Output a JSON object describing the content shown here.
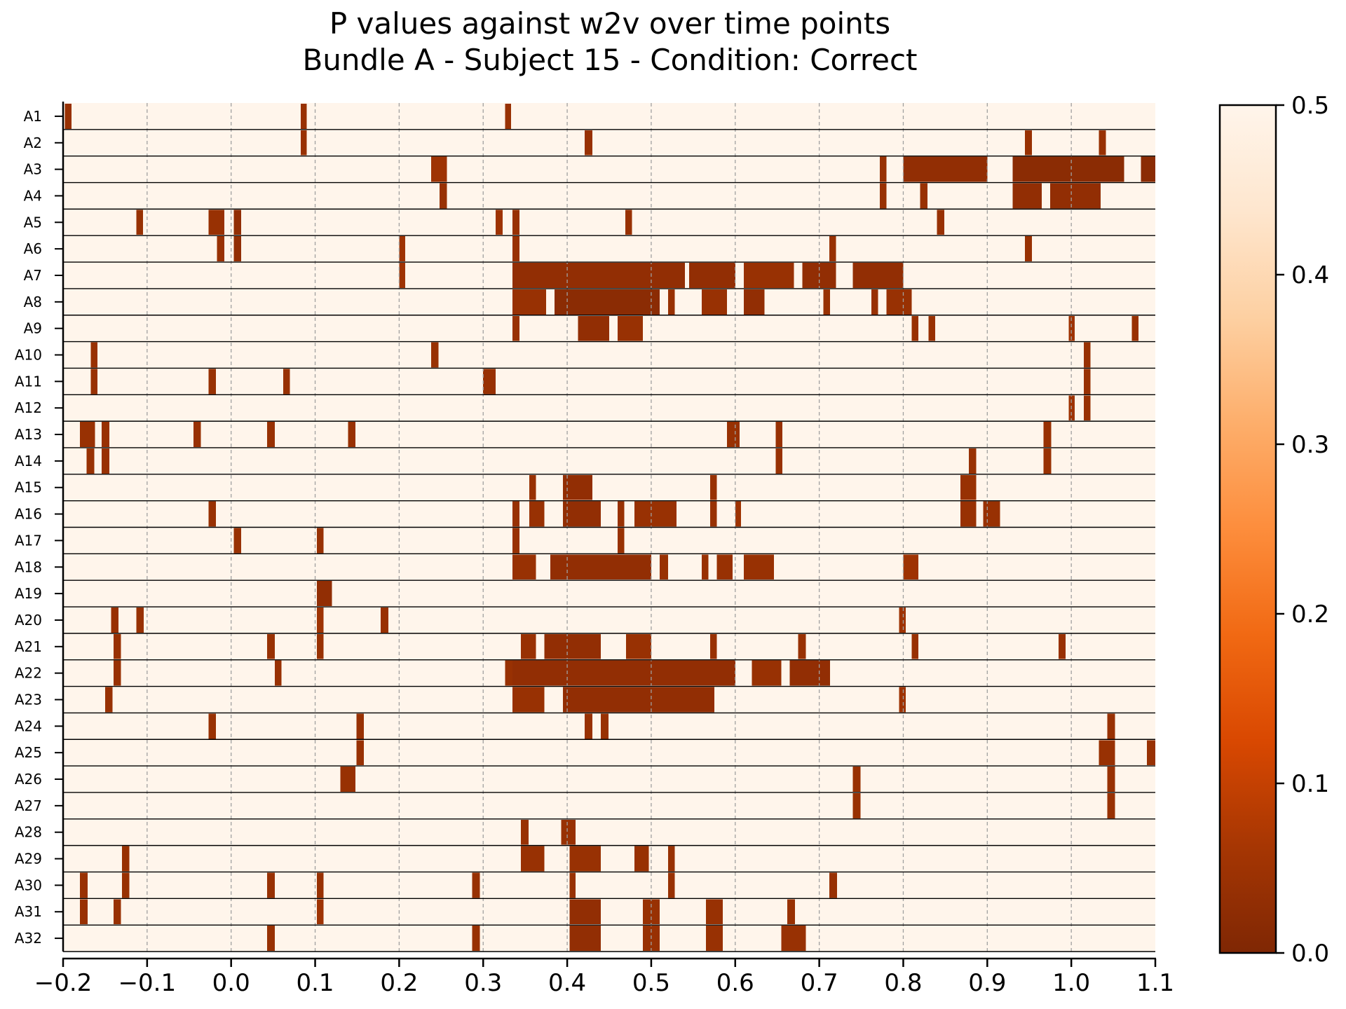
{
  "chart_data": {
    "type": "heatmap",
    "title_lines": [
      "P values against w2v over time points",
      "Bundle A - Subject 15 - Condition: Correct"
    ],
    "xlabel": "",
    "ylabel": "",
    "xlim": [
      -0.2,
      1.1
    ],
    "x_ticks": [
      "−0.2",
      "−0.1",
      "0.0",
      "0.1",
      "0.2",
      "0.3",
      "0.4",
      "0.5",
      "0.6",
      "0.7",
      "0.8",
      "0.9",
      "1.0",
      "1.1"
    ],
    "x_tick_values": [
      -0.2,
      -0.1,
      0.0,
      0.1,
      0.2,
      0.3,
      0.4,
      0.5,
      0.6,
      0.7,
      0.8,
      0.9,
      1.0,
      1.1
    ],
    "grid": "vertical dashed gridlines at x ticks",
    "colormap": "Oranges_r",
    "colorbar": {
      "range": [
        0.0,
        0.5
      ],
      "ticks": [
        "0.0",
        "0.1",
        "0.2",
        "0.3",
        "0.4",
        "0.5"
      ],
      "tick_values": [
        0.0,
        0.1,
        0.2,
        0.3,
        0.4,
        0.5
      ],
      "colors": [
        "#7f2704",
        "#a63603",
        "#d94801",
        "#f16913",
        "#fd8d3c",
        "#fdae6b",
        "#fdd0a2",
        "#fee6ce",
        "#fff5eb"
      ]
    },
    "background_value": 0.5,
    "rows": [
      {
        "label": "A1",
        "segments": [
          [
            -0.198,
            -0.19,
            0.04
          ],
          [
            0.083,
            0.09,
            0.04
          ],
          [
            0.326,
            0.333,
            0.04
          ]
        ]
      },
      {
        "label": "A2",
        "segments": [
          [
            0.083,
            0.09,
            0.04
          ],
          [
            0.421,
            0.43,
            0.04
          ],
          [
            0.945,
            0.953,
            0.04
          ],
          [
            1.033,
            1.041,
            0.04
          ]
        ]
      },
      {
        "label": "A3",
        "segments": [
          [
            0.238,
            0.257,
            0.05
          ],
          [
            0.772,
            0.78,
            0.04
          ],
          [
            0.8,
            0.9,
            0.03
          ],
          [
            0.93,
            1.063,
            0.02
          ],
          [
            1.083,
            1.1,
            0.02
          ]
        ]
      },
      {
        "label": "A4",
        "segments": [
          [
            0.248,
            0.257,
            0.04
          ],
          [
            0.772,
            0.78,
            0.04
          ],
          [
            0.82,
            0.829,
            0.04
          ],
          [
            0.93,
            0.965,
            0.03
          ],
          [
            0.975,
            1.035,
            0.03
          ]
        ]
      },
      {
        "label": "A5",
        "segments": [
          [
            -0.113,
            -0.105,
            0.04
          ],
          [
            -0.027,
            -0.008,
            0.04
          ],
          [
            0.003,
            0.012,
            0.03
          ],
          [
            0.315,
            0.323,
            0.05
          ],
          [
            0.335,
            0.343,
            0.04
          ],
          [
            0.469,
            0.477,
            0.04
          ],
          [
            0.84,
            0.849,
            0.04
          ]
        ]
      },
      {
        "label": "A6",
        "segments": [
          [
            -0.017,
            -0.008,
            0.04
          ],
          [
            0.003,
            0.012,
            0.03
          ],
          [
            0.2,
            0.207,
            0.05
          ],
          [
            0.335,
            0.343,
            0.04
          ],
          [
            0.712,
            0.72,
            0.04
          ],
          [
            0.945,
            0.953,
            0.04
          ]
        ]
      },
      {
        "label": "A7",
        "segments": [
          [
            0.2,
            0.207,
            0.05
          ],
          [
            0.335,
            0.54,
            0.03
          ],
          [
            0.545,
            0.6,
            0.03
          ],
          [
            0.61,
            0.67,
            0.04
          ],
          [
            0.68,
            0.72,
            0.03
          ],
          [
            0.74,
            0.8,
            0.03
          ]
        ]
      },
      {
        "label": "A8",
        "segments": [
          [
            0.335,
            0.375,
            0.04
          ],
          [
            0.385,
            0.51,
            0.02
          ],
          [
            0.52,
            0.528,
            0.04
          ],
          [
            0.56,
            0.59,
            0.04
          ],
          [
            0.61,
            0.635,
            0.03
          ],
          [
            0.705,
            0.713,
            0.04
          ],
          [
            0.762,
            0.77,
            0.04
          ],
          [
            0.78,
            0.81,
            0.04
          ]
        ]
      },
      {
        "label": "A9",
        "segments": [
          [
            0.335,
            0.343,
            0.04
          ],
          [
            0.413,
            0.45,
            0.03
          ],
          [
            0.46,
            0.49,
            0.04
          ],
          [
            0.81,
            0.818,
            0.04
          ],
          [
            0.83,
            0.838,
            0.04
          ],
          [
            0.997,
            1.004,
            0.05
          ],
          [
            1.072,
            1.08,
            0.04
          ]
        ]
      },
      {
        "label": "A10",
        "segments": [
          [
            -0.167,
            -0.159,
            0.04
          ],
          [
            0.238,
            0.247,
            0.04
          ],
          [
            1.015,
            1.023,
            0.04
          ]
        ]
      },
      {
        "label": "A11",
        "segments": [
          [
            -0.167,
            -0.159,
            0.04
          ],
          [
            -0.027,
            -0.018,
            0.04
          ],
          [
            0.062,
            0.07,
            0.04
          ],
          [
            0.3,
            0.315,
            0.04
          ],
          [
            1.015,
            1.023,
            0.04
          ]
        ]
      },
      {
        "label": "A12",
        "segments": [
          [
            0.997,
            1.004,
            0.05
          ],
          [
            1.015,
            1.023,
            0.04
          ]
        ]
      },
      {
        "label": "A13",
        "segments": [
          [
            -0.18,
            -0.162,
            0.04
          ],
          [
            -0.154,
            -0.145,
            0.04
          ],
          [
            -0.045,
            -0.036,
            0.04
          ],
          [
            0.043,
            0.052,
            0.04
          ],
          [
            0.139,
            0.148,
            0.04
          ],
          [
            0.59,
            0.605,
            0.04
          ],
          [
            0.648,
            0.656,
            0.04
          ],
          [
            0.967,
            0.976,
            0.04
          ]
        ]
      },
      {
        "label": "A14",
        "segments": [
          [
            -0.172,
            -0.163,
            0.04
          ],
          [
            -0.154,
            -0.145,
            0.04
          ],
          [
            0.648,
            0.656,
            0.04
          ],
          [
            0.878,
            0.887,
            0.04
          ],
          [
            0.967,
            0.976,
            0.04
          ]
        ]
      },
      {
        "label": "A15",
        "segments": [
          [
            0.355,
            0.363,
            0.04
          ],
          [
            0.395,
            0.43,
            0.03
          ],
          [
            0.57,
            0.578,
            0.04
          ],
          [
            0.868,
            0.887,
            0.04
          ]
        ]
      },
      {
        "label": "A16",
        "segments": [
          [
            -0.027,
            -0.018,
            0.04
          ],
          [
            0.335,
            0.343,
            0.04
          ],
          [
            0.355,
            0.373,
            0.04
          ],
          [
            0.395,
            0.44,
            0.03
          ],
          [
            0.46,
            0.468,
            0.04
          ],
          [
            0.48,
            0.53,
            0.04
          ],
          [
            0.57,
            0.578,
            0.04
          ],
          [
            0.6,
            0.607,
            0.05
          ],
          [
            0.868,
            0.887,
            0.04
          ],
          [
            0.895,
            0.915,
            0.04
          ]
        ]
      },
      {
        "label": "A17",
        "segments": [
          [
            0.003,
            0.012,
            0.04
          ],
          [
            0.102,
            0.11,
            0.04
          ],
          [
            0.335,
            0.343,
            0.04
          ],
          [
            0.46,
            0.468,
            0.04
          ]
        ]
      },
      {
        "label": "A18",
        "segments": [
          [
            0.335,
            0.363,
            0.04
          ],
          [
            0.38,
            0.5,
            0.03
          ],
          [
            0.51,
            0.52,
            0.04
          ],
          [
            0.56,
            0.568,
            0.04
          ],
          [
            0.578,
            0.597,
            0.04
          ],
          [
            0.61,
            0.646,
            0.04
          ],
          [
            0.8,
            0.818,
            0.05
          ]
        ]
      },
      {
        "label": "A19",
        "segments": [
          [
            0.102,
            0.12,
            0.03
          ]
        ]
      },
      {
        "label": "A20",
        "segments": [
          [
            -0.143,
            -0.134,
            0.04
          ],
          [
            -0.113,
            -0.104,
            0.04
          ],
          [
            0.102,
            0.11,
            0.05
          ],
          [
            0.178,
            0.187,
            0.04
          ],
          [
            0.795,
            0.803,
            0.05
          ]
        ]
      },
      {
        "label": "A21",
        "segments": [
          [
            -0.14,
            -0.131,
            0.04
          ],
          [
            0.043,
            0.052,
            0.04
          ],
          [
            0.102,
            0.11,
            0.04
          ],
          [
            0.345,
            0.363,
            0.04
          ],
          [
            0.373,
            0.44,
            0.03
          ],
          [
            0.47,
            0.5,
            0.04
          ],
          [
            0.57,
            0.578,
            0.04
          ],
          [
            0.675,
            0.684,
            0.04
          ],
          [
            0.81,
            0.818,
            0.04
          ],
          [
            0.985,
            0.993,
            0.04
          ]
        ]
      },
      {
        "label": "A22",
        "segments": [
          [
            -0.14,
            -0.131,
            0.04
          ],
          [
            0.052,
            0.06,
            0.04
          ],
          [
            0.326,
            0.335,
            0.04
          ],
          [
            0.335,
            0.6,
            0.03
          ],
          [
            0.62,
            0.655,
            0.04
          ],
          [
            0.665,
            0.713,
            0.03
          ]
        ]
      },
      {
        "label": "A23",
        "segments": [
          [
            -0.15,
            -0.141,
            0.04
          ],
          [
            0.335,
            0.373,
            0.04
          ],
          [
            0.395,
            0.575,
            0.03
          ],
          [
            0.795,
            0.803,
            0.05
          ]
        ]
      },
      {
        "label": "A24",
        "segments": [
          [
            -0.027,
            -0.018,
            0.04
          ],
          [
            0.149,
            0.158,
            0.04
          ],
          [
            0.421,
            0.43,
            0.04
          ],
          [
            0.44,
            0.449,
            0.04
          ],
          [
            1.043,
            1.052,
            0.04
          ]
        ]
      },
      {
        "label": "A25",
        "segments": [
          [
            0.149,
            0.158,
            0.04
          ],
          [
            1.033,
            1.052,
            0.04
          ],
          [
            1.09,
            1.1,
            0.04
          ]
        ]
      },
      {
        "label": "A26",
        "segments": [
          [
            0.13,
            0.148,
            0.04
          ],
          [
            0.74,
            0.749,
            0.04
          ],
          [
            1.043,
            1.052,
            0.04
          ]
        ]
      },
      {
        "label": "A27",
        "segments": [
          [
            0.74,
            0.749,
            0.04
          ],
          [
            1.043,
            1.052,
            0.04
          ]
        ]
      },
      {
        "label": "A28",
        "segments": [
          [
            0.345,
            0.354,
            0.04
          ],
          [
            0.393,
            0.41,
            0.04
          ]
        ]
      },
      {
        "label": "A29",
        "segments": [
          [
            -0.13,
            -0.121,
            0.04
          ],
          [
            0.345,
            0.373,
            0.04
          ],
          [
            0.403,
            0.44,
            0.04
          ],
          [
            0.48,
            0.497,
            0.04
          ],
          [
            0.52,
            0.528,
            0.04
          ]
        ]
      },
      {
        "label": "A30",
        "segments": [
          [
            -0.18,
            -0.171,
            0.04
          ],
          [
            -0.13,
            -0.121,
            0.04
          ],
          [
            0.043,
            0.052,
            0.04
          ],
          [
            0.102,
            0.11,
            0.04
          ],
          [
            0.287,
            0.296,
            0.04
          ],
          [
            0.403,
            0.41,
            0.04
          ],
          [
            0.52,
            0.528,
            0.04
          ],
          [
            0.712,
            0.721,
            0.04
          ]
        ]
      },
      {
        "label": "A31",
        "segments": [
          [
            -0.18,
            -0.171,
            0.04
          ],
          [
            -0.14,
            -0.131,
            0.04
          ],
          [
            0.102,
            0.11,
            0.05
          ],
          [
            0.403,
            0.44,
            0.03
          ],
          [
            0.49,
            0.51,
            0.04
          ],
          [
            0.565,
            0.585,
            0.04
          ],
          [
            0.662,
            0.671,
            0.04
          ]
        ]
      },
      {
        "label": "A32",
        "segments": [
          [
            0.043,
            0.052,
            0.04
          ],
          [
            0.287,
            0.296,
            0.04
          ],
          [
            0.403,
            0.44,
            0.03
          ],
          [
            0.49,
            0.51,
            0.04
          ],
          [
            0.565,
            0.585,
            0.04
          ],
          [
            0.655,
            0.684,
            0.04
          ]
        ]
      }
    ]
  }
}
